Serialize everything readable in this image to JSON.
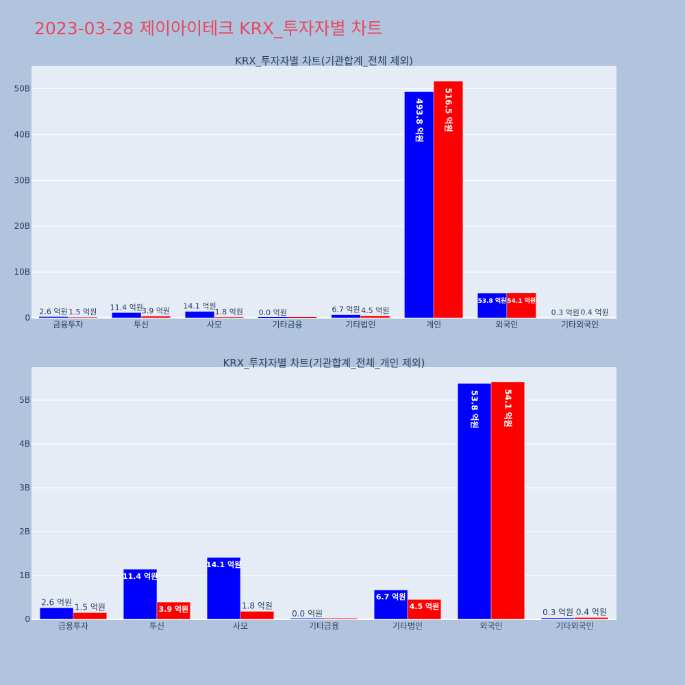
{
  "page_title": "2023-03-28 제이아이테크 KRX_투자자별 차트",
  "colors": {
    "buy": "#0000ff",
    "sell": "#ff0000",
    "title": "#e8475f",
    "plot_bg": "#e5ecf6",
    "page_bg": "#b0c4de"
  },
  "chart_data": [
    {
      "type": "bar",
      "title": "KRX_투자자별 차트(기관합계_전체 제외)",
      "categories": [
        "금융투자",
        "투신",
        "사모",
        "기타금융",
        "기타법인",
        "개인",
        "외국인",
        "기타외국인"
      ],
      "series": [
        {
          "values": [
            0.26,
            1.14,
            1.41,
            0.0,
            0.67,
            49.38,
            5.38,
            0.03
          ],
          "labels": [
            "2.6 억원",
            "11.4 억원",
            "14.1 억원",
            "0.0 억원",
            "6.7 억원",
            "493.8 억원",
            "53.8 억원",
            "0.3 억원"
          ]
        },
        {
          "values": [
            0.15,
            0.39,
            0.18,
            0.0,
            0.45,
            51.65,
            5.41,
            0.04
          ],
          "labels": [
            "1.5 억원",
            "3.9 억원",
            "1.8 억원",
            "",
            "4.5 억원",
            "516.5 억원",
            "54.1 억원",
            "0.4 억원"
          ]
        }
      ],
      "ylim": [
        0,
        55
      ],
      "yticks": [
        0,
        10,
        20,
        30,
        40,
        50
      ],
      "ytick_labels": [
        "0",
        "10B",
        "20B",
        "30B",
        "40B",
        "50B"
      ],
      "grid": true,
      "legend": "none"
    },
    {
      "type": "bar",
      "title": "KRX_투자자별 차트(기관합계_전체_개인 제외)",
      "categories": [
        "금융투자",
        "투신",
        "사모",
        "기타금융",
        "기타법인",
        "외국인",
        "기타외국인"
      ],
      "series": [
        {
          "values": [
            0.26,
            1.14,
            1.41,
            0.0,
            0.67,
            5.38,
            0.03
          ],
          "labels": [
            "2.6 억원",
            "11.4 억원",
            "14.1 억원",
            "0.0 억원",
            "6.7 억원",
            "53.8 억원",
            "0.3 억원"
          ]
        },
        {
          "values": [
            0.15,
            0.39,
            0.18,
            0.0,
            0.45,
            5.41,
            0.04
          ],
          "labels": [
            "1.5 억원",
            "3.9 억원",
            "1.8 억원",
            "",
            "4.5 억원",
            "54.1 억원",
            "0.4 억원"
          ]
        }
      ],
      "ylim": [
        0,
        5.75
      ],
      "yticks": [
        0,
        1,
        2,
        3,
        4,
        5
      ],
      "ytick_labels": [
        "0",
        "1B",
        "2B",
        "3B",
        "4B",
        "5B"
      ],
      "grid": true,
      "legend": "none"
    }
  ]
}
